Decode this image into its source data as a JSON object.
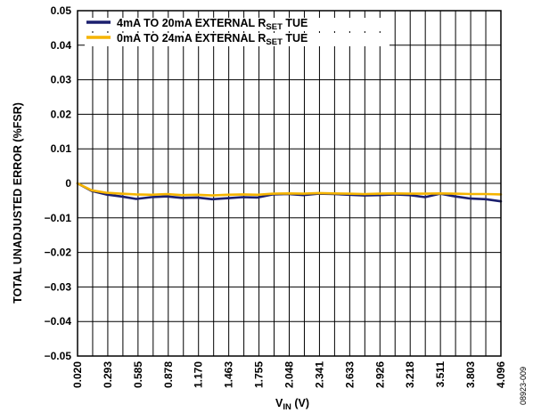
{
  "chart_data": {
    "type": "line",
    "ylabel": "TOTAL UNADJUSTED ERROR (%FSR)",
    "xlabel_main": "V",
    "xlabel_sub": "IN",
    "xlabel_unit": " (V)",
    "figure_id": "08923-009",
    "ylim": [
      -0.05,
      0.05
    ],
    "y_ticks": [
      0.05,
      0.04,
      0.03,
      0.02,
      0.01,
      0,
      -0.01,
      -0.02,
      -0.03,
      -0.04,
      -0.05
    ],
    "y_tick_labels": [
      "0.05",
      "0.04",
      "0.03",
      "0.02",
      "0.01",
      "0",
      "−0.01",
      "−0.02",
      "−0.03",
      "−0.04",
      "−0.05"
    ],
    "xlim": [
      0.02,
      4.096
    ],
    "x_tick_labels": [
      "0.020",
      "0.293",
      "0.585",
      "0.878",
      "1.170",
      "1.463",
      "1.755",
      "2.048",
      "2.341",
      "2.633",
      "2.926",
      "3.218",
      "3.511",
      "3.803",
      "4.096"
    ],
    "grid": true,
    "legend_position": "top-left",
    "series": [
      {
        "name_main": "4mA TO 20mA EXTERNAL R",
        "name_sub": "SET",
        "name_suffix": " TUE",
        "color": "#1b1f6e",
        "x": [
          0.02,
          0.156,
          0.293,
          0.439,
          0.585,
          0.731,
          0.878,
          1.024,
          1.17,
          1.317,
          1.463,
          1.609,
          1.755,
          1.902,
          2.048,
          2.194,
          2.341,
          2.487,
          2.633,
          2.78,
          2.926,
          3.072,
          3.218,
          3.365,
          3.511,
          3.657,
          3.803,
          3.95,
          4.096
        ],
        "y": [
          0.0,
          -0.0022,
          -0.0032,
          -0.0038,
          -0.0045,
          -0.004,
          -0.0038,
          -0.0042,
          -0.0041,
          -0.0046,
          -0.0043,
          -0.004,
          -0.0041,
          -0.0032,
          -0.0031,
          -0.0034,
          -0.003,
          -0.0031,
          -0.0033,
          -0.0035,
          -0.0034,
          -0.0032,
          -0.0034,
          -0.004,
          -0.003,
          -0.0038,
          -0.0044,
          -0.0046,
          -0.0052
        ]
      },
      {
        "name_main": "0mA TO 24mA EXTERNAL R",
        "name_sub": "SET",
        "name_suffix": " TUE",
        "color": "#f5b400",
        "x": [
          0.02,
          0.156,
          0.293,
          0.439,
          0.585,
          0.731,
          0.878,
          1.024,
          1.17,
          1.317,
          1.463,
          1.609,
          1.755,
          1.902,
          2.048,
          2.194,
          2.341,
          2.487,
          2.633,
          2.78,
          2.926,
          3.072,
          3.218,
          3.365,
          3.511,
          3.657,
          3.803,
          3.95,
          4.096
        ],
        "y": [
          0.0,
          -0.002,
          -0.0027,
          -0.003,
          -0.0032,
          -0.0033,
          -0.0031,
          -0.0034,
          -0.0033,
          -0.0035,
          -0.0033,
          -0.0032,
          -0.0033,
          -0.003,
          -0.0029,
          -0.003,
          -0.0028,
          -0.0029,
          -0.003,
          -0.0031,
          -0.003,
          -0.0029,
          -0.003,
          -0.003,
          -0.0029,
          -0.003,
          -0.0031,
          -0.0031,
          -0.0032
        ]
      }
    ]
  }
}
